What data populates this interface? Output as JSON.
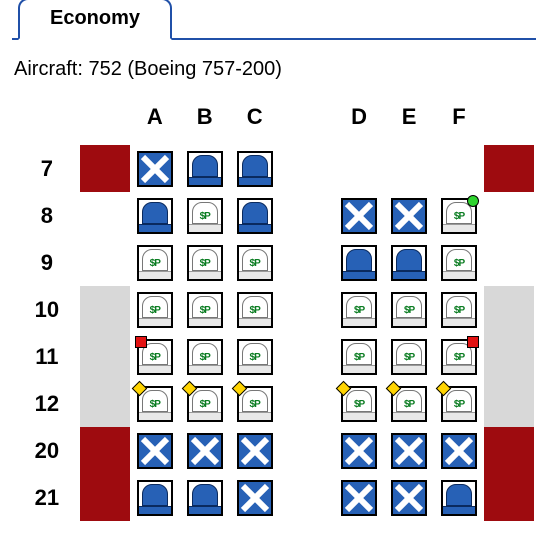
{
  "tab": {
    "label": "Economy"
  },
  "aircraft_line": "Aircraft: 752 (Boeing 757-200)",
  "columns": [
    "A",
    "B",
    "C",
    "D",
    "E",
    "F"
  ],
  "paid_tag": "$P",
  "colors": {
    "tab_border": "#2050a8",
    "wall_red": "#9e0b0f",
    "wall_gray": "#d8d8d8",
    "seat_blue": "#2761b6",
    "dot_green": "#2fd42f",
    "dot_red": "#e21212",
    "dot_yellow": "#ffd400"
  },
  "rows": [
    {
      "num": "7",
      "wall": "red",
      "seats": [
        "occ",
        "avail",
        "avail",
        null,
        null,
        null
      ]
    },
    {
      "num": "8",
      "wall": "white",
      "seats": [
        "avail",
        "paid",
        "avail",
        "occ",
        "occ",
        "paid-green"
      ]
    },
    {
      "num": "9",
      "wall": "white",
      "seats": [
        "paid",
        "paid",
        "paid",
        "avail",
        "avail",
        "paid"
      ]
    },
    {
      "num": "10",
      "wall": "gray",
      "seats": [
        "paid",
        "paid",
        "paid",
        "paid",
        "paid",
        "paid"
      ]
    },
    {
      "num": "11",
      "wall": "gray",
      "seats": [
        "paid-red",
        "paid",
        "paid",
        "paid",
        "paid",
        "paid-red-right"
      ]
    },
    {
      "num": "12",
      "wall": "gray",
      "seats": [
        "paid-yellow",
        "paid-yellow",
        "paid-yellow",
        "paid-yellow",
        "paid-yellow",
        "paid-yellow"
      ]
    },
    {
      "num": "20",
      "wall": "red",
      "seats": [
        "occ",
        "occ",
        "occ",
        "occ",
        "occ",
        "occ"
      ]
    },
    {
      "num": "21",
      "wall": "red",
      "seats": [
        "avail",
        "avail",
        "occ",
        "occ",
        "occ",
        "avail"
      ]
    }
  ]
}
